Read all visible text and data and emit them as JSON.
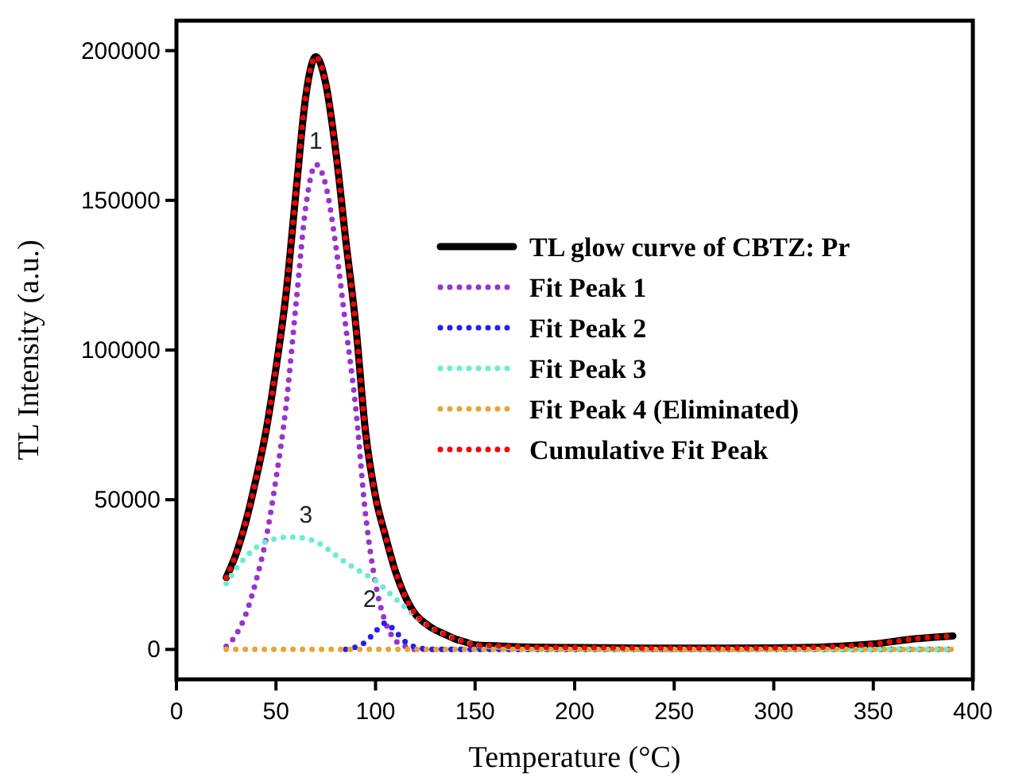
{
  "chart_data": {
    "type": "line",
    "xlabel": "Temperature (°C)",
    "ylabel": "TL Intensity (a.u.)",
    "xlim": [
      0,
      400
    ],
    "xticks": [
      0,
      50,
      100,
      150,
      200,
      250,
      300,
      350,
      400
    ],
    "ylim": [
      -10000,
      210000
    ],
    "yticks": [
      0,
      50000,
      100000,
      150000,
      200000
    ],
    "grid": false,
    "legend": "right",
    "x": [
      25,
      30,
      35,
      40,
      45,
      50,
      55,
      60,
      65,
      70,
      75,
      80,
      85,
      90,
      95,
      100,
      105,
      110,
      115,
      120,
      125,
      130,
      135,
      140,
      145,
      150,
      160,
      175,
      200,
      225,
      250,
      275,
      300,
      325,
      350,
      370,
      390
    ],
    "series": [
      {
        "name": "TL glow curve of CBTZ: Pr",
        "color": "#000000",
        "line_style": "solid",
        "values": [
          24000,
          32000,
          43000,
          57000,
          73000,
          94000,
          118500,
          152500,
          185000,
          198000,
          189000,
          166500,
          137000,
          108800,
          72500,
          51000,
          37800,
          26000,
          17500,
          11800,
          8700,
          6500,
          5000,
          3500,
          2500,
          1500,
          1200,
          800,
          600,
          500,
          400,
          400,
          500,
          800,
          1800,
          3500,
          4500
        ]
      },
      {
        "name": "Fit Peak 1",
        "color": "#9b30d9",
        "line_style": "dotted",
        "values": [
          1000,
          5000,
          12000,
          23000,
          37000,
          57000,
          81000,
          115000,
          148000,
          162000,
          155000,
          135000,
          108000,
          81000,
          45000,
          22000,
          9000,
          3000,
          1000,
          0,
          0,
          0,
          0,
          0,
          0,
          0,
          0,
          0,
          0,
          0,
          0,
          0,
          0,
          0,
          0,
          0,
          0
        ]
      },
      {
        "name": "Fit Peak 2",
        "color": "#1f1fff",
        "line_style": "dotted",
        "values": [
          null,
          null,
          null,
          null,
          null,
          null,
          null,
          null,
          null,
          null,
          null,
          null,
          0,
          800,
          2500,
          6000,
          8800,
          6000,
          2500,
          800,
          200,
          0,
          0,
          0,
          0,
          0,
          0,
          0,
          0,
          0,
          0,
          0,
          0,
          0,
          0,
          0,
          0
        ]
      },
      {
        "name": "Fit Peak 3",
        "color": "#66f0d0",
        "line_style": "dotted",
        "values": [
          22000,
          27000,
          31000,
          34000,
          36000,
          37000,
          37500,
          37500,
          37000,
          36000,
          34000,
          31500,
          29000,
          27000,
          25000,
          23000,
          20000,
          17000,
          14000,
          11000,
          8500,
          6500,
          5000,
          3500,
          2500,
          1500,
          900,
          400,
          200,
          0,
          0,
          0,
          0,
          0,
          0,
          0,
          0
        ]
      },
      {
        "name": "Fit Peak 4 (Eliminated)",
        "color": "#e8a631",
        "line_style": "dotted",
        "values": [
          0,
          0,
          0,
          0,
          0,
          0,
          0,
          0,
          0,
          0,
          0,
          0,
          0,
          0,
          0,
          0,
          0,
          0,
          0,
          0,
          0,
          0,
          0,
          0,
          0,
          0,
          0,
          0,
          0,
          0,
          0,
          0,
          0,
          0,
          0,
          0,
          0
        ]
      },
      {
        "name": "Cumulative Fit Peak",
        "color": "#ff0000",
        "line_style": "dotted",
        "values": [
          24000,
          32000,
          43000,
          57000,
          73000,
          94000,
          118500,
          152500,
          185000,
          198000,
          189000,
          166500,
          137000,
          108800,
          72500,
          51000,
          37800,
          26000,
          17500,
          11800,
          8700,
          6500,
          5000,
          3500,
          2500,
          1500,
          1200,
          800,
          600,
          500,
          400,
          400,
          500,
          800,
          1800,
          3500,
          4500
        ]
      }
    ],
    "annotations": [
      {
        "text": "1",
        "x": 70,
        "y": 162000
      },
      {
        "text": "2",
        "x": 105,
        "y": 8800
      },
      {
        "text": "3",
        "x": 65,
        "y": 37000
      }
    ]
  }
}
